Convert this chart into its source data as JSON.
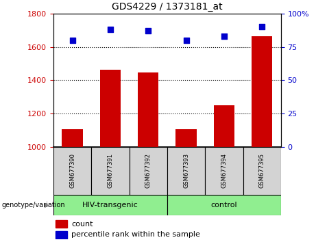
{
  "title": "GDS4229 / 1373181_at",
  "samples": [
    "GSM677390",
    "GSM677391",
    "GSM677392",
    "GSM677393",
    "GSM677394",
    "GSM677395"
  ],
  "counts": [
    1105,
    1462,
    1448,
    1108,
    1248,
    1665
  ],
  "percentiles": [
    80,
    88,
    87,
    80,
    83,
    90
  ],
  "ylim_left": [
    1000,
    1800
  ],
  "ylim_right": [
    0,
    100
  ],
  "yticks_left": [
    1000,
    1200,
    1400,
    1600,
    1800
  ],
  "yticks_right": [
    0,
    25,
    50,
    75,
    100
  ],
  "ytick_right_labels": [
    "0",
    "25",
    "50",
    "75",
    "100%"
  ],
  "groups": [
    {
      "label": "HIV-transgenic",
      "start": 0,
      "end": 3
    },
    {
      "label": "control",
      "start": 3,
      "end": 6
    }
  ],
  "group_label": "genotype/variation",
  "bar_color": "#cc0000",
  "dot_color": "#0000cc",
  "legend_count_label": "count",
  "legend_percentile_label": "percentile rank within the sample",
  "grid_color": "#000000",
  "tick_label_color_left": "#cc0000",
  "tick_label_color_right": "#0000cc",
  "bar_width": 0.55,
  "group_bg_color": "#d3d3d3",
  "group_label_bg": "#90ee90",
  "fig_width": 4.61,
  "fig_height": 3.54,
  "dpi": 100
}
